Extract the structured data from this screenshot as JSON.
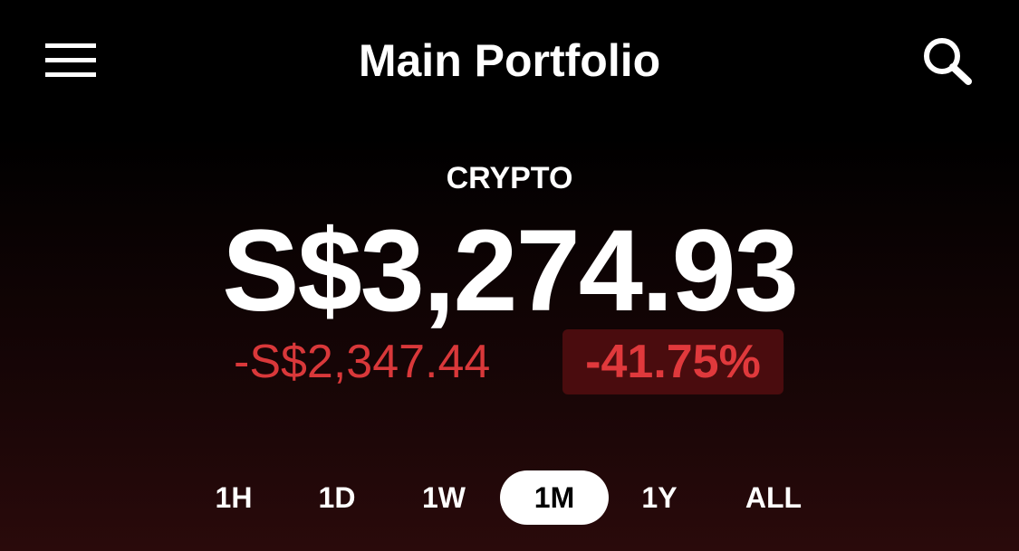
{
  "header": {
    "title": "Main Portfolio"
  },
  "portfolio": {
    "label": "CRYPTO",
    "value": "S$3,274.93",
    "change": "-S$2,347.44",
    "change_percent": "-41.75%"
  },
  "ranges": {
    "options": [
      "1H",
      "1D",
      "1W",
      "1M",
      "1Y",
      "ALL"
    ],
    "selected": 3
  }
}
